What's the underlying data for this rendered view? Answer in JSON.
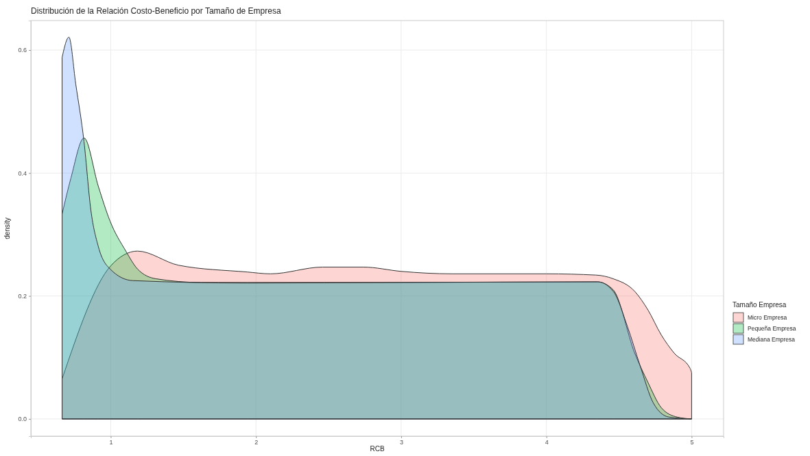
{
  "chart_data": {
    "type": "area",
    "title": "Distribución de la Relación Costo-Beneficio por Tamaño de Empresa",
    "xlabel": "RCB",
    "ylabel": "density",
    "legend_title": "Tamaño Empresa",
    "xlim": [
      0.45,
      5.22
    ],
    "ylim": [
      -0.028,
      0.648
    ],
    "xticks": [
      1,
      2,
      3,
      4,
      5
    ],
    "yticks": [
      {
        "value": 0,
        "label": "0.0"
      },
      {
        "value": 0.2,
        "label": "0.2"
      },
      {
        "value": 0.4,
        "label": "0.4"
      },
      {
        "value": 0.6,
        "label": "0.6"
      }
    ],
    "grid": true,
    "legend": "right",
    "series": [
      {
        "name": "Micro Empresa",
        "color": "#f8766d",
        "x": [
          0.665,
          1.0,
          1.184,
          1.467,
          1.939,
          2.1,
          2.46,
          2.74,
          3.0,
          3.35,
          4.0,
          4.34,
          4.46,
          4.61,
          4.7,
          4.79,
          4.88,
          4.99,
          5.0
        ],
        "values": [
          0.065,
          0.249,
          0.273,
          0.25,
          0.239,
          0.236,
          0.247,
          0.247,
          0.24,
          0.236,
          0.236,
          0.234,
          0.228,
          0.207,
          0.177,
          0.137,
          0.107,
          0.082,
          0.075
        ]
      },
      {
        "name": "Pequeña Empresa",
        "color": "#00ba38",
        "x": [
          0.665,
          0.726,
          0.816,
          0.915,
          0.995,
          1.104,
          1.184,
          1.311,
          1.623,
          3.0,
          4.35,
          4.46,
          4.608,
          4.698,
          4.792,
          4.9,
          5.0
        ],
        "values": [
          0.333,
          0.392,
          0.457,
          0.378,
          0.322,
          0.273,
          0.244,
          0.228,
          0.222,
          0.222,
          0.223,
          0.21,
          0.107,
          0.06,
          0.018,
          0.003,
          0.0
        ]
      },
      {
        "name": "Mediana Empresa",
        "color": "#619cff",
        "x": [
          0.665,
          0.712,
          0.759,
          0.816,
          0.863,
          0.915,
          0.995,
          1.151,
          1.939,
          3.0,
          4.354,
          4.462,
          4.557,
          4.646,
          4.736,
          4.844,
          5.0
        ],
        "values": [
          0.588,
          0.621,
          0.545,
          0.451,
          0.34,
          0.28,
          0.244,
          0.225,
          0.221,
          0.222,
          0.223,
          0.207,
          0.151,
          0.086,
          0.026,
          0.003,
          0.0
        ]
      }
    ]
  }
}
